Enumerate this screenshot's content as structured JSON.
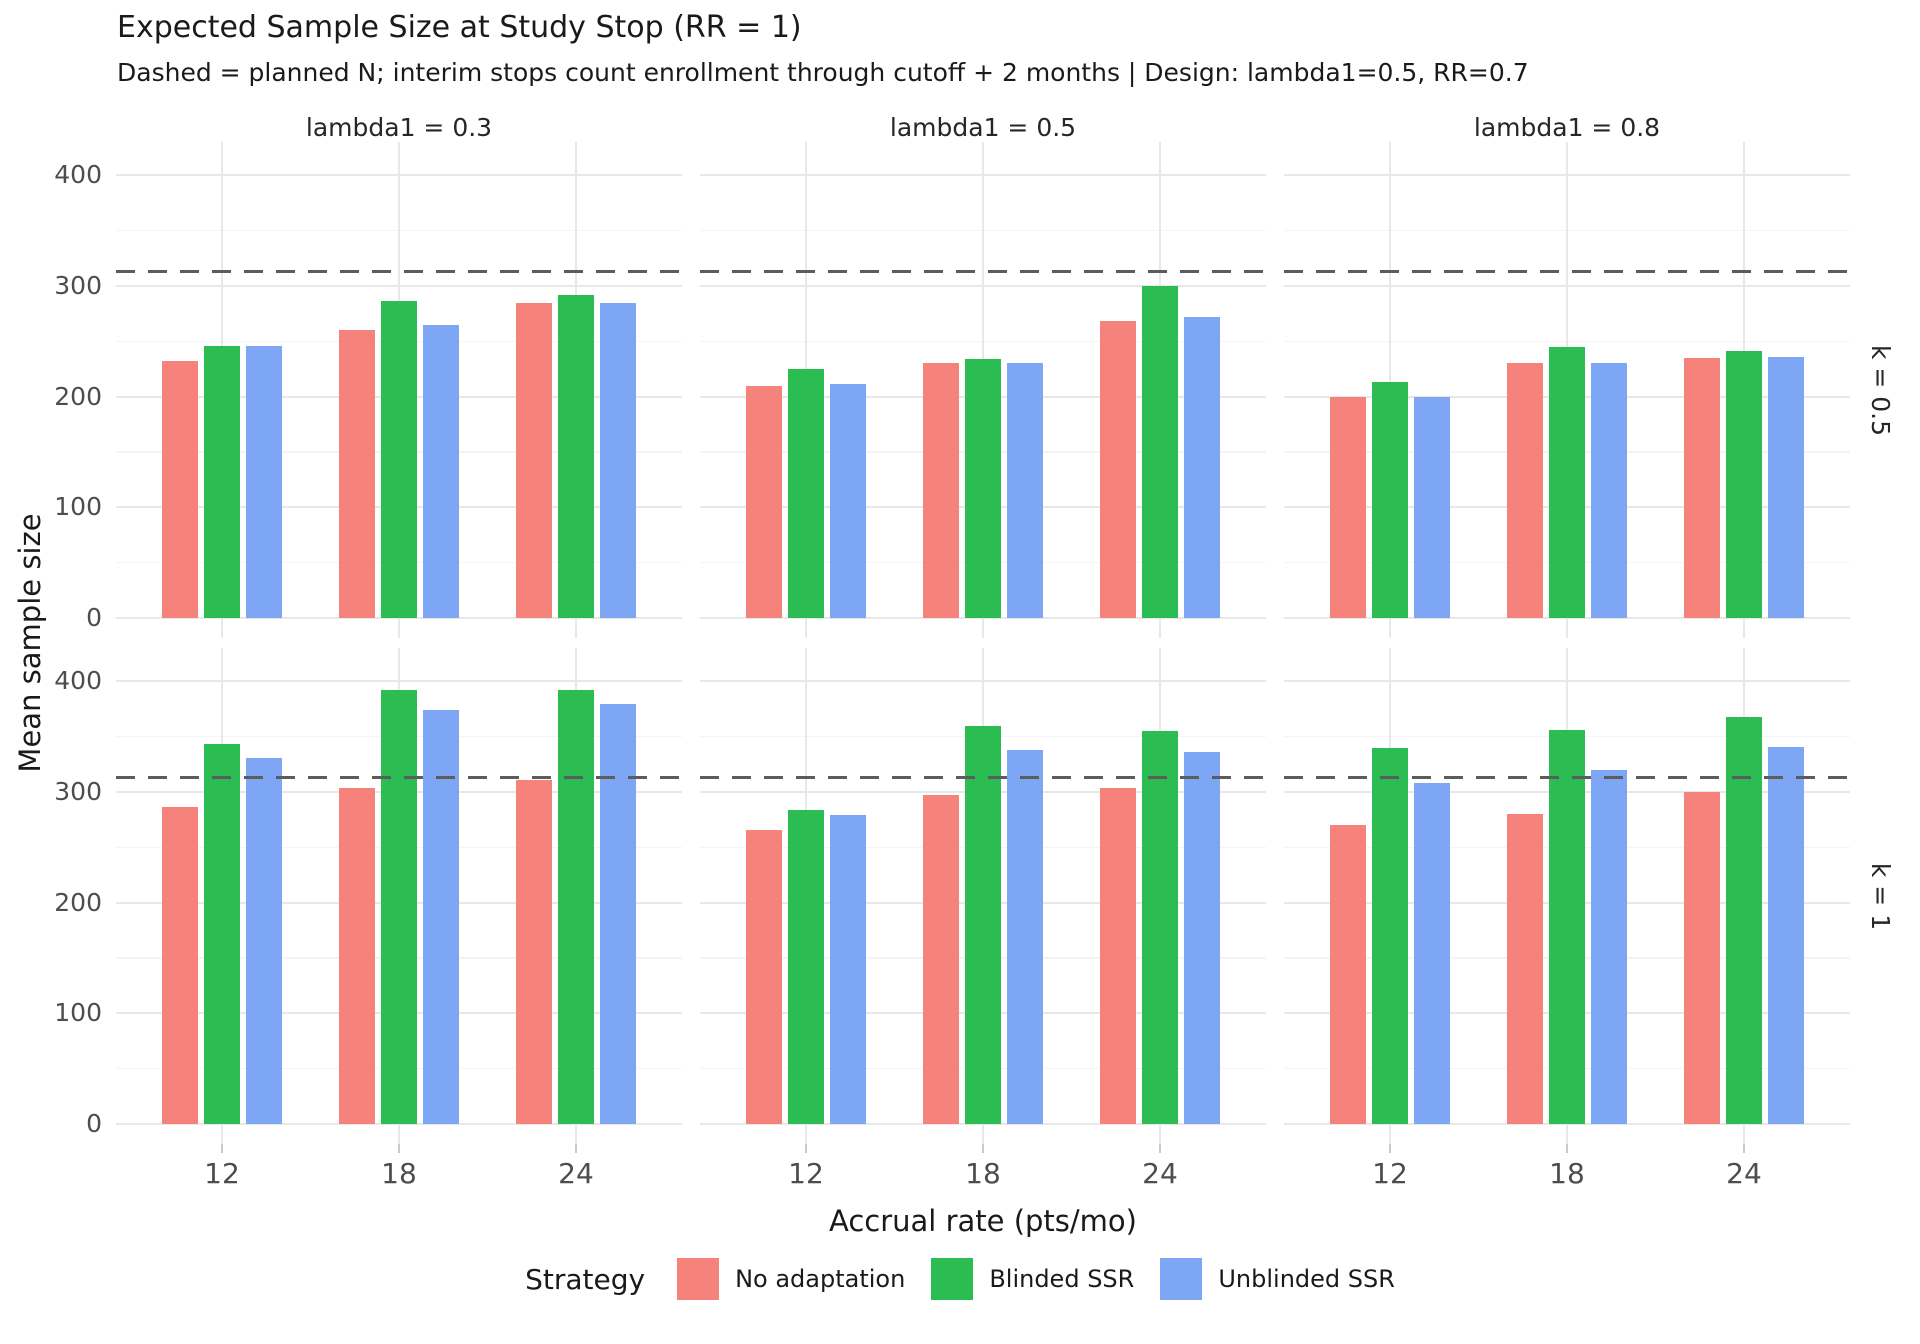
{
  "title": "Expected Sample Size at Study Stop (RR = 1)",
  "subtitle": "Dashed = planned N; interim stops count enrollment through cutoff + 2 months | Design: lambda1=0.5, RR=0.7",
  "axes": {
    "x_title": "Accrual rate (pts/mo)",
    "y_title": "Mean sample size"
  },
  "legend": {
    "title": "Strategy",
    "items": [
      {
        "label": "No adaptation",
        "color": "#F5837C"
      },
      {
        "label": "Blinded SSR",
        "color": "#2BBD51"
      },
      {
        "label": "Unblinded SSR",
        "color": "#7DA7F5"
      }
    ]
  },
  "chart_data": {
    "type": "bar",
    "title": "Expected Sample Size at Study Stop (RR = 1)",
    "subtitle": "Dashed = planned N; interim stops count enrollment through cutoff + 2 months | Design: lambda1=0.5, RR=0.7",
    "xlabel": "Accrual rate (pts/mo)",
    "ylabel": "Mean sample size",
    "facet_cols": [
      "lambda1 = 0.3",
      "lambda1 = 0.5",
      "lambda1 = 0.8"
    ],
    "facet_rows": [
      "k = 0.5",
      "k = 1"
    ],
    "categories": [
      "12",
      "18",
      "24"
    ],
    "series_names": [
      "No adaptation",
      "Blinded SSR",
      "Unblinded SSR"
    ],
    "colors": {
      "No adaptation": "#F5837C",
      "Blinded SSR": "#2BBD51",
      "Unblinded SSR": "#7DA7F5"
    },
    "y_ticks": [
      0,
      100,
      200,
      300,
      400
    ],
    "y_minor": [
      50,
      150,
      250,
      350
    ],
    "ylim": [
      -18,
      430
    ],
    "dashed_reference": 313,
    "dashed_reference_meaning": "planned N",
    "legend_position": "bottom",
    "grid": "on",
    "panels": [
      {
        "row": "k = 0.5",
        "col": "lambda1 = 0.3",
        "values": [
          [
            232,
            246,
            246
          ],
          [
            260,
            286,
            265
          ],
          [
            285,
            292,
            285
          ]
        ]
      },
      {
        "row": "k = 0.5",
        "col": "lambda1 = 0.5",
        "values": [
          [
            210,
            225,
            211
          ],
          [
            230,
            234,
            230
          ],
          [
            268,
            300,
            272
          ]
        ]
      },
      {
        "row": "k = 0.5",
        "col": "lambda1 = 0.8",
        "values": [
          [
            200,
            213,
            200
          ],
          [
            230,
            245,
            230
          ],
          [
            235,
            241,
            236
          ]
        ]
      },
      {
        "row": "k = 1",
        "col": "lambda1 = 0.3",
        "values": [
          [
            286,
            343,
            331
          ],
          [
            304,
            392,
            374
          ],
          [
            311,
            392,
            379
          ]
        ]
      },
      {
        "row": "k = 1",
        "col": "lambda1 = 0.5",
        "values": [
          [
            266,
            284,
            279
          ],
          [
            297,
            360,
            338
          ],
          [
            304,
            355,
            336
          ]
        ]
      },
      {
        "row": "k = 1",
        "col": "lambda1 = 0.8",
        "values": [
          [
            270,
            340,
            308
          ],
          [
            280,
            356,
            320
          ],
          [
            300,
            368,
            341
          ]
        ]
      }
    ]
  }
}
